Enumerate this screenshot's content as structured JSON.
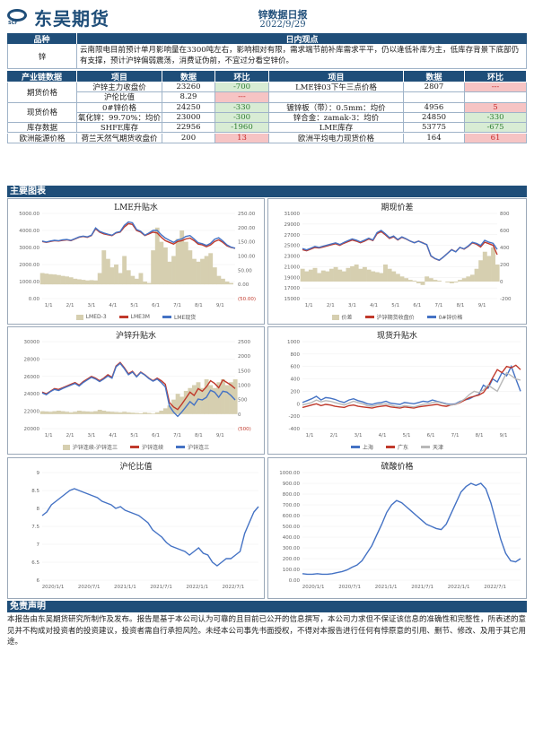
{
  "header": {
    "logo_text": "东吴期货",
    "logo_sub": "SCF",
    "title": "锌数据日报",
    "date": "2022/9/29"
  },
  "view": {
    "col1": "品种",
    "col2": "日内观点",
    "item": "锌",
    "text": "云南限电目前预计单月影响量在3300吨左右，影响相对有限，需求端节前补库需求平平，仍以逢低补库为主，低库存背景下底部仍有支撑，预计沪锌偏弱震荡，消费证伪前，不宜过分看空锌价。"
  },
  "chain": {
    "headers": [
      "产业链数据",
      "项目",
      "数据",
      "环比",
      "项目",
      "数据",
      "环比"
    ],
    "groups": [
      {
        "name": "期货价格",
        "rows": [
          {
            "item_l": "沪锌主力收盘价",
            "val_l": "23260",
            "chg_l": "-700",
            "item_r": "LME锌03下午三点价格",
            "val_r": "2807",
            "chg_r": "---"
          },
          {
            "item_l": "沪伦比值",
            "val_l": "8.29",
            "chg_l": "---",
            "item_r": "",
            "val_r": "",
            "chg_r": ""
          }
        ]
      },
      {
        "name": "现货价格",
        "rows": [
          {
            "item_l": "0#锌价格",
            "val_l": "24250",
            "chg_l": "-330",
            "item_r": "镀锌板（带）：0.5mm：均价",
            "val_r": "4956",
            "chg_r": "5"
          },
          {
            "item_l": "氧化锌：99.70%：均价",
            "val_l": "23000",
            "chg_l": "-300",
            "item_r": "锌合金：zamak-3：均价",
            "val_r": "24850",
            "chg_r": "-330"
          }
        ]
      },
      {
        "name": "库存数据",
        "rows": [
          {
            "item_l": "SHFE库存",
            "val_l": "22956",
            "chg_l": "-1960",
            "item_r": "LME库存",
            "val_r": "53775",
            "chg_r": "-675"
          }
        ]
      },
      {
        "name": "欧洲能源价格",
        "rows": [
          {
            "item_l": "荷兰天然气期货收盘价",
            "val_l": "200",
            "chg_l": "13",
            "item_r": "欧洲平均电力现货价格",
            "val_r": "164",
            "chg_r": "61"
          }
        ]
      }
    ]
  },
  "charts_title": "主要图表",
  "colors": {
    "navy": "#1f4e79",
    "blue": "#4472c4",
    "red": "#c0392b",
    "tan": "#d6cfb0",
    "gray": "#a0a0a0"
  },
  "chart_data": [
    {
      "id": "c1",
      "type": "line",
      "title": "LME升贴水",
      "x_ticks": [
        "1/1",
        "2/1",
        "3/1",
        "4/1",
        "5/1",
        "6/1",
        "7/1",
        "8/1",
        "9/1"
      ],
      "y_ticks_left": [
        "5000.00",
        "4000.00",
        "3000.00",
        "2000.00",
        "1000.00",
        "0.00"
      ],
      "y_ticks_right": [
        "250.00",
        "200.00",
        "150.00",
        "100.00",
        "50.00",
        "0.00",
        "(50.00)"
      ],
      "ylim_left": [
        0,
        5000
      ],
      "ylim_right": [
        -50,
        250
      ],
      "series": [
        {
          "name": "LMED-3",
          "kind": "area",
          "axis": "right",
          "values": [
            40,
            38,
            36,
            35,
            33,
            30,
            28,
            25,
            20,
            18,
            16,
            14,
            15,
            14,
            40,
            120,
            90,
            60,
            70,
            40,
            100,
            50,
            30,
            20,
            40,
            10,
            5,
            120,
            200,
            150,
            130,
            80,
            100,
            160,
            190,
            150,
            120,
            90,
            80,
            90,
            100,
            110,
            60,
            30,
            20,
            10,
            5,
            0
          ]
        },
        {
          "name": "LME3M",
          "kind": "line",
          "axis": "left",
          "values": [
            3350,
            3300,
            3350,
            3400,
            3380,
            3420,
            3450,
            3400,
            3500,
            3600,
            3650,
            3600,
            3700,
            4100,
            3900,
            3800,
            3750,
            3700,
            3850,
            3900,
            4200,
            4400,
            4350,
            4000,
            3900,
            3700,
            3800,
            3900,
            3850,
            3600,
            3400,
            3300,
            3200,
            3350,
            3400,
            3500,
            3550,
            3400,
            3200,
            3150,
            3050,
            3150,
            3350,
            3450,
            3300,
            3100,
            3000,
            2950
          ]
        },
        {
          "name": "LME现货",
          "kind": "line",
          "axis": "left",
          "values": [
            3380,
            3320,
            3380,
            3420,
            3400,
            3450,
            3470,
            3420,
            3520,
            3620,
            3670,
            3620,
            3720,
            4150,
            3950,
            3850,
            3780,
            3720,
            3880,
            3930,
            4300,
            4500,
            4450,
            4050,
            3950,
            3720,
            3850,
            4000,
            4000,
            3750,
            3550,
            3420,
            3300,
            3450,
            3500,
            3650,
            3700,
            3500,
            3280,
            3220,
            3120,
            3240,
            3480,
            3570,
            3380,
            3150,
            3020,
            2960
          ]
        }
      ]
    },
    {
      "id": "c2",
      "type": "line",
      "title": "期现价差",
      "x_ticks": [
        "1/1",
        "2/1",
        "3/1",
        "4/1",
        "5/1",
        "6/1",
        "7/1",
        "8/1",
        "9/1"
      ],
      "y_ticks_left": [
        "31000",
        "29000",
        "27000",
        "25000",
        "23000",
        "21000",
        "19000",
        "17000",
        "15000"
      ],
      "y_ticks_right": [
        "800",
        "600",
        "400",
        "200",
        "0",
        "-200"
      ],
      "ylim_left": [
        15000,
        31000
      ],
      "ylim_right": [
        -200,
        800
      ],
      "series": [
        {
          "name": "价差",
          "kind": "area",
          "axis": "right",
          "values": [
            150,
            120,
            140,
            160,
            100,
            130,
            120,
            150,
            170,
            140,
            120,
            160,
            180,
            200,
            150,
            170,
            140,
            120,
            110,
            100,
            200,
            150,
            120,
            90,
            60,
            40,
            20,
            10,
            -20,
            -40,
            60,
            40,
            20,
            10,
            0,
            -10,
            -20,
            -10,
            20,
            40,
            60,
            80,
            150,
            250,
            350,
            300,
            400,
            200
          ]
        },
        {
          "name": "沪锌期货收盘价",
          "kind": "line",
          "axis": "left",
          "values": [
            24200,
            24000,
            24300,
            24600,
            24500,
            24700,
            24900,
            25100,
            25300,
            25000,
            25400,
            25700,
            26000,
            25800,
            25500,
            25800,
            26200,
            25900,
            27200,
            27600,
            27000,
            26300,
            26600,
            26000,
            26500,
            26200,
            25800,
            25500,
            25800,
            25500,
            25100,
            23000,
            22500,
            22200,
            22800,
            23500,
            24200,
            23800,
            24600,
            24300,
            24800,
            25500,
            25200,
            24700,
            25600,
            25300,
            25000,
            23260
          ]
        },
        {
          "name": "0#锌价格",
          "kind": "line",
          "axis": "left",
          "values": [
            24400,
            24150,
            24450,
            24780,
            24620,
            24850,
            25050,
            25280,
            25480,
            25150,
            25550,
            25880,
            26200,
            25980,
            25650,
            25980,
            26350,
            26020,
            27400,
            27800,
            27200,
            26450,
            26750,
            26100,
            26580,
            26250,
            25820,
            25500,
            25780,
            25450,
            25160,
            23050,
            22520,
            22210,
            22800,
            23480,
            24160,
            23780,
            24620,
            24350,
            24880,
            25600,
            25370,
            24970,
            25950,
            25600,
            25400,
            24250
          ]
        }
      ]
    },
    {
      "id": "c3",
      "type": "line",
      "title": "沪锌升贴水",
      "x_ticks": [
        "1/1",
        "2/1",
        "3/1",
        "4/1",
        "5/1",
        "6/1",
        "7/1",
        "8/1",
        "9/1"
      ],
      "y_ticks_left": [
        "30000",
        "28000",
        "26000",
        "24000",
        "22000",
        "20000"
      ],
      "y_ticks_right": [
        "2500",
        "2000",
        "1500",
        "1000",
        "500",
        "0",
        "(500)"
      ],
      "ylim_left": [
        20000,
        30000
      ],
      "ylim_right": [
        -500,
        2500
      ],
      "series": [
        {
          "name": "沪锌连续-沪锌连三",
          "kind": "area",
          "axis": "right",
          "values": [
            100,
            90,
            80,
            100,
            120,
            100,
            80,
            60,
            80,
            120,
            100,
            90,
            80,
            100,
            150,
            120,
            90,
            80,
            70,
            60,
            80,
            60,
            50,
            40,
            30,
            60,
            40,
            20,
            60,
            120,
            200,
            300,
            500,
            700,
            600,
            800,
            900,
            1000,
            1100,
            900,
            1200,
            1000,
            900,
            1100,
            1200,
            1000,
            1100,
            1200
          ]
        },
        {
          "name": "沪锌连续",
          "kind": "line",
          "axis": "left",
          "values": [
            24200,
            24000,
            24300,
            24600,
            24500,
            24700,
            24900,
            25100,
            25300,
            25000,
            25400,
            25700,
            26000,
            25800,
            25500,
            25800,
            26200,
            25900,
            27200,
            27600,
            27000,
            26300,
            26600,
            26000,
            26500,
            26200,
            25800,
            25500,
            25800,
            25500,
            25100,
            23000,
            22500,
            22200,
            22800,
            23500,
            24200,
            23800,
            24600,
            24300,
            24800,
            25500,
            25200,
            24700,
            25600,
            25300,
            25000,
            24600
          ]
        },
        {
          "name": "沪锌连三",
          "kind": "line",
          "axis": "left",
          "values": [
            24100,
            23900,
            24250,
            24500,
            24380,
            24620,
            24800,
            25000,
            25200,
            24900,
            25300,
            25600,
            25900,
            25700,
            25400,
            25700,
            26050,
            25800,
            27100,
            27500,
            26900,
            26200,
            26500,
            25950,
            26450,
            26150,
            25750,
            25450,
            25700,
            25300,
            24800,
            22600,
            21900,
            21400,
            21900,
            22500,
            23100,
            22700,
            23400,
            23300,
            23600,
            24400,
            24200,
            23600,
            24300,
            24200,
            23800,
            23300
          ]
        }
      ]
    },
    {
      "id": "c4",
      "type": "line",
      "title": "现货升贴水",
      "x_ticks": [
        "1/1",
        "2/1",
        "3/1",
        "4/1",
        "5/1",
        "6/1",
        "7/1",
        "8/1",
        "9/1"
      ],
      "y_ticks_left": [
        "1000",
        "800",
        "600",
        "400",
        "200",
        "0",
        "-200",
        "-400"
      ],
      "ylim_left": [
        -400,
        1000
      ],
      "series": [
        {
          "name": "上海",
          "kind": "line",
          "axis": "left",
          "values": [
            20,
            50,
            80,
            120,
            60,
            100,
            90,
            70,
            40,
            20,
            60,
            80,
            50,
            30,
            0,
            -10,
            10,
            20,
            40,
            10,
            0,
            -10,
            20,
            10,
            0,
            20,
            40,
            30,
            60,
            40,
            20,
            0,
            -10,
            0,
            40,
            60,
            80,
            120,
            150,
            300,
            250,
            400,
            350,
            500,
            450,
            600,
            400,
            200
          ]
        },
        {
          "name": "广东",
          "kind": "line",
          "axis": "left",
          "values": [
            -60,
            -40,
            -20,
            0,
            -30,
            -10,
            -20,
            -40,
            -50,
            -60,
            -30,
            -20,
            -40,
            -50,
            -60,
            -70,
            -50,
            -40,
            -30,
            -50,
            -60,
            -70,
            -50,
            -60,
            -70,
            -50,
            -40,
            -30,
            -20,
            -10,
            -30,
            -40,
            -20,
            -10,
            20,
            60,
            100,
            120,
            140,
            180,
            280,
            420,
            550,
            500,
            600,
            580,
            620,
            550
          ]
        },
        {
          "name": "天津",
          "kind": "line",
          "axis": "left",
          "values": [
            -20,
            0,
            20,
            60,
            30,
            50,
            40,
            20,
            0,
            -20,
            10,
            40,
            20,
            0,
            -30,
            -40,
            -20,
            -10,
            0,
            -20,
            -40,
            -50,
            -30,
            -40,
            -50,
            -30,
            -10,
            0,
            20,
            30,
            10,
            -10,
            -20,
            -10,
            30,
            80,
            150,
            200,
            180,
            220,
            300,
            250,
            200,
            350,
            500,
            450,
            400,
            380
          ]
        }
      ]
    },
    {
      "id": "c5",
      "type": "line",
      "title": "沪伦比值",
      "x_ticks": [
        "2020/1/1",
        "2020/7/1",
        "2021/1/1",
        "2021/7/1",
        "2022/1/1",
        "2022/7/1"
      ],
      "y_ticks_left": [
        "9",
        "8.5",
        "8",
        "7.5",
        "7",
        "6.5",
        "6"
      ],
      "ylim_left": [
        6,
        9
      ],
      "series": [
        {
          "name": "沪伦比值",
          "kind": "line",
          "axis": "left",
          "values": [
            7.8,
            7.9,
            8.1,
            8.2,
            8.3,
            8.4,
            8.5,
            8.55,
            8.5,
            8.45,
            8.4,
            8.35,
            8.3,
            8.2,
            8.15,
            8.1,
            8.0,
            8.05,
            7.95,
            7.9,
            7.85,
            7.8,
            7.7,
            7.6,
            7.4,
            7.3,
            7.2,
            7.05,
            6.95,
            6.9,
            6.85,
            6.8,
            6.7,
            6.8,
            6.9,
            6.75,
            6.7,
            6.5,
            6.4,
            6.5,
            6.6,
            6.6,
            6.7,
            6.8,
            7.3,
            7.6,
            7.9,
            8.05
          ]
        }
      ]
    },
    {
      "id": "c6",
      "type": "line",
      "title": "硫酸价格",
      "x_ticks": [
        "2020/1/1",
        "2020/7/1",
        "2021/1/1",
        "2021/7/1",
        "2022/1/1",
        "2022/7/1"
      ],
      "y_ticks_left": [
        "1000.00",
        "900.00",
        "800.00",
        "700.00",
        "600.00",
        "500.00",
        "400.00",
        "300.00",
        "200.00",
        "100.00",
        "0.00"
      ],
      "ylim_left": [
        0,
        1000
      ],
      "series": [
        {
          "name": "硫酸价格",
          "kind": "line",
          "axis": "left",
          "values": [
            60,
            55,
            55,
            60,
            55,
            55,
            60,
            70,
            80,
            95,
            120,
            140,
            180,
            250,
            320,
            420,
            520,
            630,
            700,
            740,
            720,
            680,
            640,
            600,
            560,
            520,
            500,
            480,
            470,
            520,
            620,
            720,
            820,
            870,
            900,
            880,
            900,
            850,
            720,
            550,
            380,
            250,
            180,
            170,
            200
          ]
        }
      ]
    }
  ],
  "disclaimer": {
    "title": "免责声明",
    "text": "本报告由东吴期货研究所制作及发布。报告是基于本公司认为可靠的且目前已公开的信息撰写，本公司力求但不保证该信息的准确性和完整性，所表述的意见并不构成对投资者的投资建议，投资者需自行承担风险。未经本公司事先书面授权，不得对本报告进行任何有悖原意的引用、删节、修改、及用于其它用途。"
  }
}
